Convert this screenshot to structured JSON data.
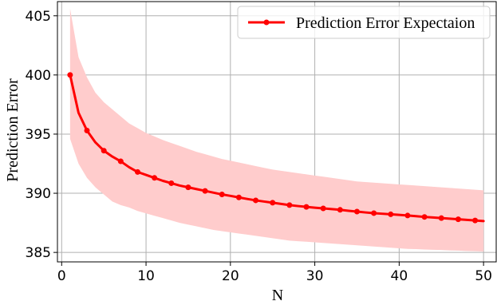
{
  "chart_data": {
    "type": "line",
    "title": "",
    "xlabel": "N",
    "ylabel": "Prediction Error",
    "xlim": [
      -0.5,
      51.5
    ],
    "ylim": [
      384.2,
      406.2
    ],
    "xticks": [
      0,
      10,
      20,
      30,
      40,
      50
    ],
    "yticks": [
      385,
      390,
      395,
      400,
      405
    ],
    "grid": true,
    "legend_position": "top-right",
    "series": [
      {
        "name": "Prediction Error Expectaion",
        "color": "#ff0000",
        "band_color": "#ffcccc",
        "x": [
          1,
          2,
          3,
          4,
          5,
          6,
          7,
          8,
          9,
          10,
          11,
          12,
          13,
          14,
          15,
          16,
          17,
          18,
          19,
          20,
          21,
          22,
          23,
          24,
          25,
          26,
          27,
          28,
          29,
          30,
          31,
          32,
          33,
          34,
          35,
          36,
          37,
          38,
          39,
          40,
          41,
          42,
          43,
          44,
          45,
          46,
          47,
          48,
          49,
          50
        ],
        "y": [
          400.0,
          396.8,
          395.3,
          394.3,
          393.6,
          393.1,
          392.7,
          392.2,
          391.8,
          391.55,
          391.3,
          391.05,
          390.85,
          390.65,
          390.5,
          390.35,
          390.2,
          390.05,
          389.9,
          389.78,
          389.65,
          389.52,
          389.4,
          389.3,
          389.2,
          389.1,
          389.0,
          388.92,
          388.85,
          388.78,
          388.72,
          388.66,
          388.6,
          388.52,
          388.45,
          388.38,
          388.32,
          388.27,
          388.22,
          388.17,
          388.12,
          388.06,
          388.0,
          387.95,
          387.9,
          387.85,
          387.8,
          387.75,
          387.7,
          387.65
        ],
        "upper": [
          405.6,
          401.5,
          399.8,
          398.5,
          397.7,
          397.1,
          396.5,
          395.9,
          395.5,
          395.1,
          394.8,
          394.5,
          394.25,
          394.0,
          393.75,
          393.5,
          393.3,
          393.1,
          392.9,
          392.75,
          392.6,
          392.45,
          392.3,
          392.15,
          392.0,
          391.9,
          391.8,
          391.7,
          391.6,
          391.5,
          391.4,
          391.3,
          391.2,
          391.1,
          391.0,
          390.95,
          390.9,
          390.85,
          390.8,
          390.75,
          390.7,
          390.65,
          390.6,
          390.55,
          390.5,
          390.45,
          390.4,
          390.35,
          390.3,
          390.25
        ],
        "lower": [
          394.6,
          392.5,
          391.3,
          390.5,
          389.9,
          389.3,
          389.0,
          388.8,
          388.5,
          388.3,
          388.1,
          387.9,
          387.7,
          387.5,
          387.35,
          387.2,
          387.05,
          386.9,
          386.8,
          386.7,
          386.6,
          386.5,
          386.4,
          386.3,
          386.2,
          386.1,
          386.0,
          385.95,
          385.9,
          385.85,
          385.8,
          385.75,
          385.7,
          385.65,
          385.6,
          385.55,
          385.5,
          385.45,
          385.4,
          385.35,
          385.3,
          385.28,
          385.25,
          385.22,
          385.2,
          385.17,
          385.15,
          385.12,
          385.1,
          385.08
        ],
        "marker_every": 2
      }
    ]
  }
}
